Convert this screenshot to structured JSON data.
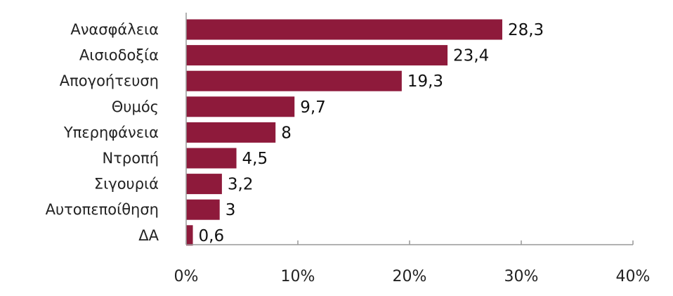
{
  "chart_data": {
    "type": "bar",
    "orientation": "horizontal",
    "categories": [
      "Ανασφάλεια",
      "Αισιοδοξία",
      "Απογοήτευση",
      "Θυμός",
      "Υπερηφάνεια",
      "Ντροπή",
      "Σιγουριά",
      "Αυτοπεποίθηση",
      "ΔΑ"
    ],
    "values": [
      28.3,
      23.4,
      19.3,
      9.7,
      8,
      4.5,
      3.2,
      3,
      0.6
    ],
    "value_labels": [
      "28,3",
      "23,4",
      "19,3",
      "9,7",
      "8",
      "4,5",
      "3,2",
      "3",
      "0,6"
    ],
    "xlim": [
      0,
      40
    ],
    "xticks": [
      0,
      10,
      20,
      30,
      40
    ],
    "xtick_labels": [
      "0%",
      "10%",
      "20%",
      "30%",
      "40%"
    ],
    "title": "",
    "xlabel": "",
    "ylabel": "",
    "grid": false,
    "colors": {
      "bar": "#8e1a3b",
      "axis": "#999999"
    }
  }
}
